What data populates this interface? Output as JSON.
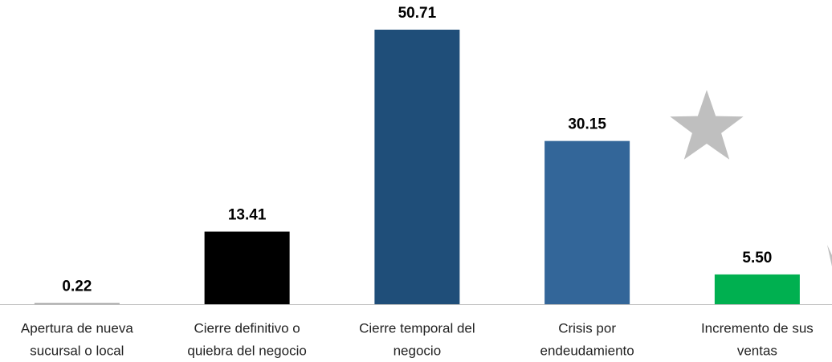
{
  "chart_data": {
    "type": "bar",
    "categories": [
      [
        "Apertura de nueva",
        "sucursal o local"
      ],
      [
        "Cierre definitivo o",
        "quiebra del negocio"
      ],
      [
        "Cierre temporal del",
        "negocio"
      ],
      [
        "Crisis por",
        "endeudamiento"
      ],
      [
        "Incremento de sus",
        "ventas"
      ]
    ],
    "values": [
      0.22,
      13.41,
      50.71,
      30.15,
      5.5
    ],
    "value_labels": [
      "0.22",
      "13.41",
      "50.71",
      "30.15",
      "5.50"
    ],
    "colors": [
      "#a6a6a6",
      "#000000",
      "#1f4e79",
      "#336699",
      "#00b050"
    ]
  }
}
